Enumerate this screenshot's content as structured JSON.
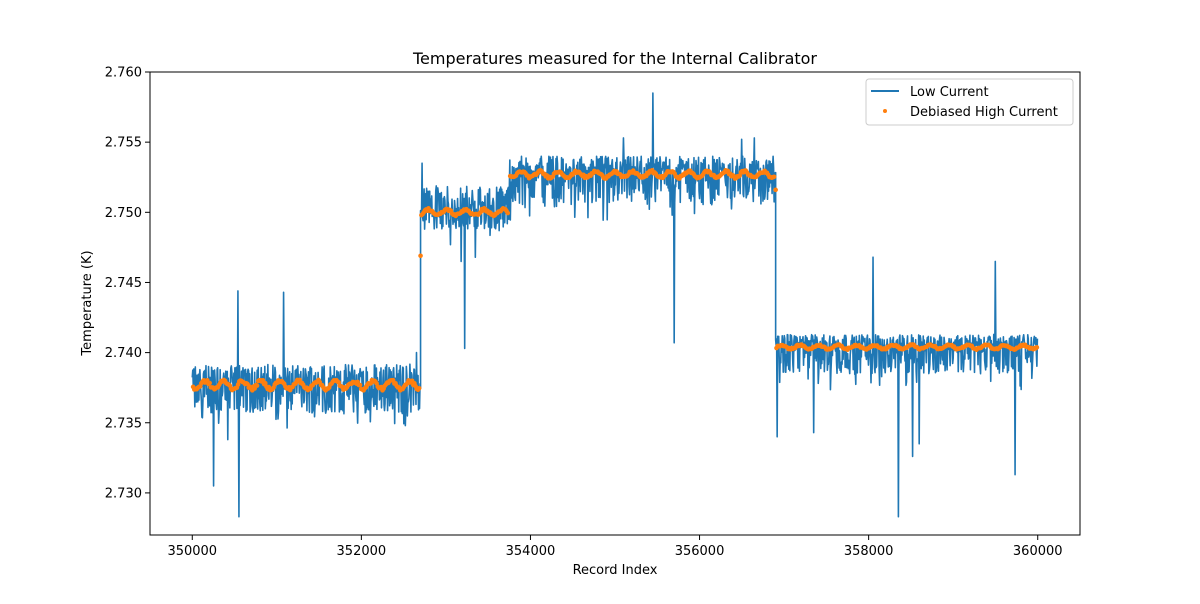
{
  "chart_data": {
    "type": "line",
    "title": "Temperatures measured for the Internal Calibrator",
    "xlabel": "Record Index",
    "ylabel": "Temperature (K)",
    "xlim": [
      349500,
      360500
    ],
    "ylim": [
      2.727,
      2.76
    ],
    "xticks": [
      350000,
      352000,
      354000,
      356000,
      358000,
      360000
    ],
    "xtick_labels": [
      "350000",
      "352000",
      "354000",
      "356000",
      "358000",
      "360000"
    ],
    "yticks": [
      2.73,
      2.735,
      2.74,
      2.745,
      2.75,
      2.755,
      2.76
    ],
    "ytick_labels": [
      "2.730",
      "2.735",
      "2.740",
      "2.745",
      "2.750",
      "2.755",
      "2.760"
    ],
    "grid": false,
    "legend_position": "top-right",
    "colors": {
      "low_current": "#1f77b4",
      "debiased_high_current": "#ff7f0e"
    },
    "series": [
      {
        "name": "Low Current",
        "kind": "line",
        "segments": [
          {
            "x_start": 350000,
            "x_end": 352700,
            "mean": 2.7378,
            "band_low": 2.7357,
            "band_high": 2.7392,
            "spikes": [
              [
                350250,
                2.7305
              ],
              [
                350420,
                2.7338
              ],
              [
                350540,
                2.7444
              ],
              [
                350550,
                2.7283
              ],
              [
                351080,
                2.7443
              ],
              [
                352520,
                2.7348
              ],
              [
                352650,
                2.74
              ]
            ]
          },
          {
            "x_start": 352700,
            "x_end": 353750,
            "mean": 2.7502,
            "band_low": 2.7488,
            "band_high": 2.7519,
            "spikes": [
              [
                352720,
                2.7535
              ],
              [
                353220,
                2.7403
              ],
              [
                353180,
                2.7465
              ],
              [
                353350,
                2.7468
              ]
            ]
          },
          {
            "x_start": 353750,
            "x_end": 356900,
            "mean": 2.7528,
            "band_low": 2.7505,
            "band_high": 2.754,
            "spikes": [
              [
                355100,
                2.7553
              ],
              [
                355450,
                2.7585
              ],
              [
                355700,
                2.7407
              ],
              [
                356500,
                2.7552
              ],
              [
                356650,
                2.7553
              ]
            ]
          },
          {
            "x_start": 356900,
            "x_end": 360000,
            "mean": 2.7405,
            "band_low": 2.7385,
            "band_high": 2.7413,
            "spikes": [
              [
                356920,
                2.734
              ],
              [
                357350,
                2.7343
              ],
              [
                358050,
                2.7468
              ],
              [
                358350,
                2.7283
              ],
              [
                358520,
                2.7326
              ],
              [
                358600,
                2.7335
              ],
              [
                359500,
                2.7465
              ],
              [
                359730,
                2.7313
              ]
            ]
          }
        ]
      },
      {
        "name": "Debiased High Current",
        "kind": "scatter",
        "segments": [
          {
            "x_start": 350000,
            "x_end": 352700,
            "mean": 2.7377,
            "ripple": 0.0004
          },
          {
            "x_start": 352700,
            "x_end": 353750,
            "mean": 2.75,
            "ripple": 0.0003
          },
          {
            "x_start": 353750,
            "x_end": 356900,
            "mean": 2.7527,
            "ripple": 0.0003
          },
          {
            "x_start": 356900,
            "x_end": 360000,
            "mean": 2.7404,
            "ripple": 0.0002
          }
        ],
        "outliers": [
          [
            352700,
            2.7469
          ],
          [
            356900,
            2.7516
          ]
        ]
      }
    ]
  }
}
